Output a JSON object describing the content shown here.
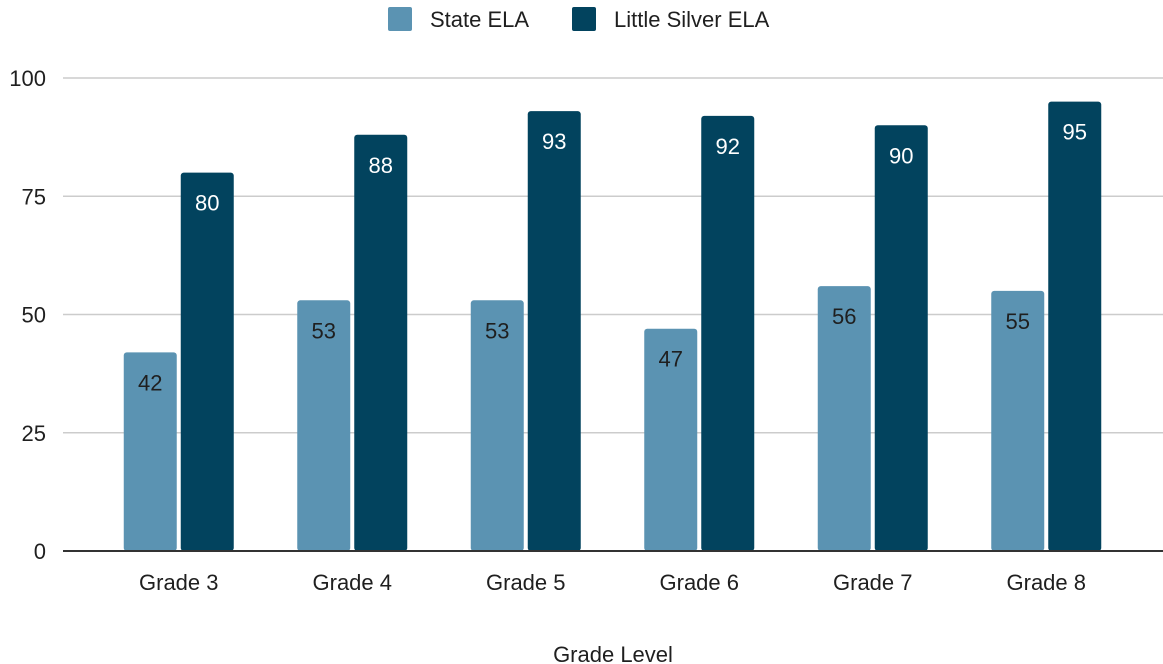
{
  "chart_data": {
    "type": "bar",
    "title": "",
    "xlabel": "Grade Level",
    "ylabel": "",
    "categories": [
      "Grade 3",
      "Grade 4",
      "Grade 5",
      "Grade 6",
      "Grade 7",
      "Grade 8"
    ],
    "series": [
      {
        "name": "State ELA",
        "color": "#5b93b2",
        "label_color": "#1f1f1f",
        "values": [
          42,
          53,
          53,
          47,
          56,
          55
        ]
      },
      {
        "name": "Little Silver ELA",
        "color": "#02435e",
        "label_color": "#ffffff",
        "values": [
          80,
          88,
          93,
          92,
          90,
          95
        ]
      }
    ],
    "ylim": [
      0,
      100
    ],
    "yticks": [
      0,
      25,
      50,
      75,
      100
    ],
    "grid": true,
    "legend_position": "top-center",
    "data_labels": true
  }
}
